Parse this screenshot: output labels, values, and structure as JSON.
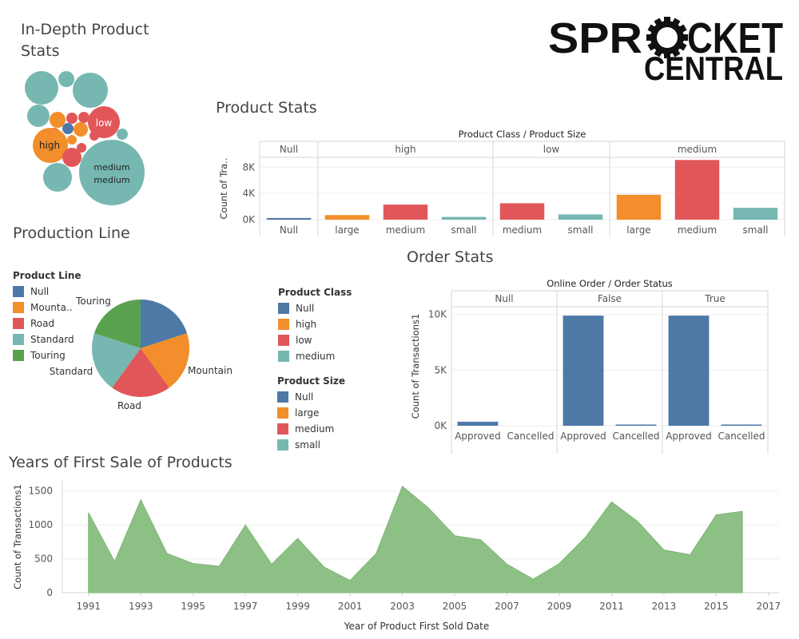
{
  "logo": {
    "line1a": "SPR",
    "line1b": "CKET",
    "line2": "CENTRAL"
  },
  "titles": {
    "bubble": "In-Depth Product Stats",
    "bubble_line1": "In-Depth Product",
    "bubble_line2": "Stats",
    "product_stats": "Product Stats",
    "production_line": "Production Line",
    "order_stats": "Order Stats",
    "years": "Years of First Sale of Products"
  },
  "colors": {
    "blue": "#4e79a7",
    "orange": "#f28e2b",
    "red": "#e15759",
    "teal": "#76b7b2",
    "green": "#59a14f",
    "area": "#8cc084"
  },
  "legends": {
    "product_line": {
      "title": "Product Line",
      "items": [
        "Null",
        "Mounta..",
        "Road",
        "Standard",
        "Touring"
      ]
    },
    "product_class": {
      "title": "Product Class",
      "items": [
        "Null",
        "high",
        "low",
        "medium"
      ]
    },
    "product_size": {
      "title": "Product Size",
      "items": [
        "Null",
        "large",
        "medium",
        "small"
      ]
    }
  },
  "chart_data": [
    {
      "id": "bubble",
      "type": "scatter",
      "title": "In-Depth Product Stats",
      "labels": [
        "low",
        "high",
        "medium",
        "medium"
      ],
      "legend": "none"
    },
    {
      "id": "product_stats",
      "type": "bar",
      "title": "Product Stats",
      "header": "Product Class / Product Size",
      "ylabel": "Count of Tra..",
      "yticks": [
        "0K",
        "4K",
        "8K"
      ],
      "ylim": [
        0,
        9500
      ],
      "groups": [
        {
          "label": "Null",
          "bars": [
            {
              "label": "Null",
              "value": 250,
              "color": "blue"
            }
          ]
        },
        {
          "label": "high",
          "bars": [
            {
              "label": "large",
              "value": 700,
              "color": "orange"
            },
            {
              "label": "medium",
              "value": 2300,
              "color": "red"
            },
            {
              "label": "small",
              "value": 420,
              "color": "teal"
            }
          ]
        },
        {
          "label": "low",
          "bars": [
            {
              "label": "medium",
              "value": 2500,
              "color": "red"
            },
            {
              "label": "small",
              "value": 800,
              "color": "teal"
            }
          ]
        },
        {
          "label": "medium",
          "bars": [
            {
              "label": "large",
              "value": 3800,
              "color": "orange"
            },
            {
              "label": "medium",
              "value": 9100,
              "color": "red"
            },
            {
              "label": "small",
              "value": 1800,
              "color": "teal"
            }
          ]
        }
      ]
    },
    {
      "id": "production_line",
      "type": "pie",
      "title": "Production Line",
      "slices": [
        {
          "label": "Null",
          "value": 20,
          "color": "blue",
          "show_label": ""
        },
        {
          "label": "Mountain",
          "value": 20,
          "color": "orange",
          "show_label": "Mountain"
        },
        {
          "label": "Road",
          "value": 20,
          "color": "red",
          "show_label": "Road"
        },
        {
          "label": "Standard",
          "value": 20,
          "color": "teal",
          "show_label": "Standard"
        },
        {
          "label": "Touring",
          "value": 20,
          "color": "green",
          "show_label": "Touring"
        }
      ]
    },
    {
      "id": "order_stats",
      "type": "bar",
      "title": "Order Stats",
      "header": "Online Order / Order Status",
      "ylabel": "Count of Transactions1",
      "yticks": [
        "0K",
        "5K",
        "10K"
      ],
      "ylim": [
        0,
        10700
      ],
      "groups": [
        {
          "label": "Null",
          "bars": [
            {
              "label": "Approved",
              "value": 360,
              "color": "blue"
            },
            {
              "label": "Cancelled",
              "value": 0,
              "color": "blue"
            }
          ]
        },
        {
          "label": "False",
          "bars": [
            {
              "label": "Approved",
              "value": 9900,
              "color": "blue"
            },
            {
              "label": "Cancelled",
              "value": 90,
              "color": "blue"
            }
          ]
        },
        {
          "label": "True",
          "bars": [
            {
              "label": "Approved",
              "value": 9900,
              "color": "blue"
            },
            {
              "label": "Cancelled",
              "value": 90,
              "color": "blue"
            }
          ]
        }
      ]
    },
    {
      "id": "years",
      "type": "area",
      "title": "Years of First Sale of Products",
      "xlabel": "Year of Product First Sold Date",
      "ylabel": "Count of Transactions1",
      "xlim": [
        1990,
        2017.4
      ],
      "ylim": [
        0,
        1650
      ],
      "xticks": [
        1991,
        1993,
        1995,
        1997,
        1999,
        2001,
        2003,
        2005,
        2007,
        2009,
        2011,
        2013,
        2015,
        2017
      ],
      "yticks": [
        0,
        500,
        1000,
        1500
      ],
      "x": [
        1991,
        1992,
        1993,
        1994,
        1995,
        1996,
        1997,
        1998,
        1999,
        2000,
        2001,
        2002,
        2003,
        2004,
        2005,
        2006,
        2007,
        2008,
        2009,
        2010,
        2011,
        2012,
        2013,
        2014,
        2015,
        2016
      ],
      "y": [
        1180,
        460,
        1370,
        580,
        430,
        390,
        1000,
        420,
        800,
        380,
        180,
        580,
        1570,
        1250,
        840,
        780,
        420,
        200,
        430,
        820,
        1340,
        1050,
        630,
        560,
        1150,
        1200
      ]
    }
  ]
}
